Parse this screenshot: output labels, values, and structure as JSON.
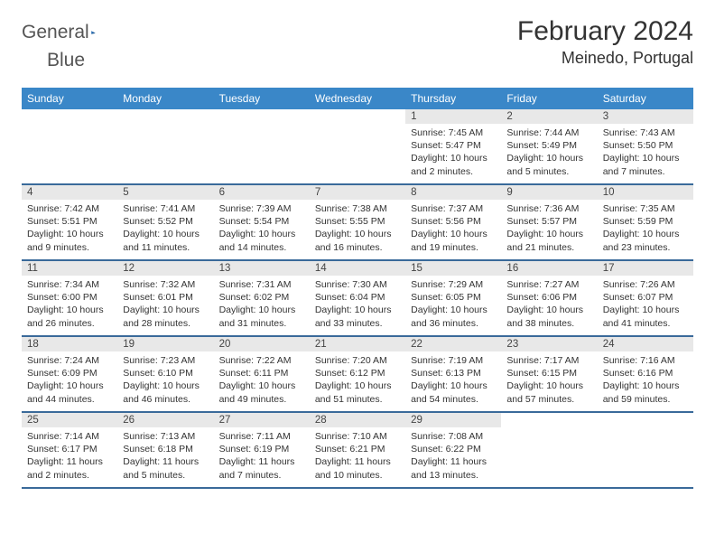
{
  "brand": {
    "word1": "General",
    "word2": "Blue",
    "icon_color": "#2a71b8"
  },
  "title": "February 2024",
  "location": "Meinedo, Portugal",
  "colors": {
    "header_bg": "#3a87c8",
    "week_border": "#3a6a9a",
    "daynum_bg": "#e8e8e8",
    "page_bg": "#ffffff",
    "text": "#333333"
  },
  "weekdays": [
    "Sunday",
    "Monday",
    "Tuesday",
    "Wednesday",
    "Thursday",
    "Friday",
    "Saturday"
  ],
  "weeks": [
    [
      {
        "n": "",
        "sunrise": "",
        "sunset": "",
        "daylight": ""
      },
      {
        "n": "",
        "sunrise": "",
        "sunset": "",
        "daylight": ""
      },
      {
        "n": "",
        "sunrise": "",
        "sunset": "",
        "daylight": ""
      },
      {
        "n": "",
        "sunrise": "",
        "sunset": "",
        "daylight": ""
      },
      {
        "n": "1",
        "sunrise": "Sunrise: 7:45 AM",
        "sunset": "Sunset: 5:47 PM",
        "daylight": "Daylight: 10 hours and 2 minutes."
      },
      {
        "n": "2",
        "sunrise": "Sunrise: 7:44 AM",
        "sunset": "Sunset: 5:49 PM",
        "daylight": "Daylight: 10 hours and 5 minutes."
      },
      {
        "n": "3",
        "sunrise": "Sunrise: 7:43 AM",
        "sunset": "Sunset: 5:50 PM",
        "daylight": "Daylight: 10 hours and 7 minutes."
      }
    ],
    [
      {
        "n": "4",
        "sunrise": "Sunrise: 7:42 AM",
        "sunset": "Sunset: 5:51 PM",
        "daylight": "Daylight: 10 hours and 9 minutes."
      },
      {
        "n": "5",
        "sunrise": "Sunrise: 7:41 AM",
        "sunset": "Sunset: 5:52 PM",
        "daylight": "Daylight: 10 hours and 11 minutes."
      },
      {
        "n": "6",
        "sunrise": "Sunrise: 7:39 AM",
        "sunset": "Sunset: 5:54 PM",
        "daylight": "Daylight: 10 hours and 14 minutes."
      },
      {
        "n": "7",
        "sunrise": "Sunrise: 7:38 AM",
        "sunset": "Sunset: 5:55 PM",
        "daylight": "Daylight: 10 hours and 16 minutes."
      },
      {
        "n": "8",
        "sunrise": "Sunrise: 7:37 AM",
        "sunset": "Sunset: 5:56 PM",
        "daylight": "Daylight: 10 hours and 19 minutes."
      },
      {
        "n": "9",
        "sunrise": "Sunrise: 7:36 AM",
        "sunset": "Sunset: 5:57 PM",
        "daylight": "Daylight: 10 hours and 21 minutes."
      },
      {
        "n": "10",
        "sunrise": "Sunrise: 7:35 AM",
        "sunset": "Sunset: 5:59 PM",
        "daylight": "Daylight: 10 hours and 23 minutes."
      }
    ],
    [
      {
        "n": "11",
        "sunrise": "Sunrise: 7:34 AM",
        "sunset": "Sunset: 6:00 PM",
        "daylight": "Daylight: 10 hours and 26 minutes."
      },
      {
        "n": "12",
        "sunrise": "Sunrise: 7:32 AM",
        "sunset": "Sunset: 6:01 PM",
        "daylight": "Daylight: 10 hours and 28 minutes."
      },
      {
        "n": "13",
        "sunrise": "Sunrise: 7:31 AM",
        "sunset": "Sunset: 6:02 PM",
        "daylight": "Daylight: 10 hours and 31 minutes."
      },
      {
        "n": "14",
        "sunrise": "Sunrise: 7:30 AM",
        "sunset": "Sunset: 6:04 PM",
        "daylight": "Daylight: 10 hours and 33 minutes."
      },
      {
        "n": "15",
        "sunrise": "Sunrise: 7:29 AM",
        "sunset": "Sunset: 6:05 PM",
        "daylight": "Daylight: 10 hours and 36 minutes."
      },
      {
        "n": "16",
        "sunrise": "Sunrise: 7:27 AM",
        "sunset": "Sunset: 6:06 PM",
        "daylight": "Daylight: 10 hours and 38 minutes."
      },
      {
        "n": "17",
        "sunrise": "Sunrise: 7:26 AM",
        "sunset": "Sunset: 6:07 PM",
        "daylight": "Daylight: 10 hours and 41 minutes."
      }
    ],
    [
      {
        "n": "18",
        "sunrise": "Sunrise: 7:24 AM",
        "sunset": "Sunset: 6:09 PM",
        "daylight": "Daylight: 10 hours and 44 minutes."
      },
      {
        "n": "19",
        "sunrise": "Sunrise: 7:23 AM",
        "sunset": "Sunset: 6:10 PM",
        "daylight": "Daylight: 10 hours and 46 minutes."
      },
      {
        "n": "20",
        "sunrise": "Sunrise: 7:22 AM",
        "sunset": "Sunset: 6:11 PM",
        "daylight": "Daylight: 10 hours and 49 minutes."
      },
      {
        "n": "21",
        "sunrise": "Sunrise: 7:20 AM",
        "sunset": "Sunset: 6:12 PM",
        "daylight": "Daylight: 10 hours and 51 minutes."
      },
      {
        "n": "22",
        "sunrise": "Sunrise: 7:19 AM",
        "sunset": "Sunset: 6:13 PM",
        "daylight": "Daylight: 10 hours and 54 minutes."
      },
      {
        "n": "23",
        "sunrise": "Sunrise: 7:17 AM",
        "sunset": "Sunset: 6:15 PM",
        "daylight": "Daylight: 10 hours and 57 minutes."
      },
      {
        "n": "24",
        "sunrise": "Sunrise: 7:16 AM",
        "sunset": "Sunset: 6:16 PM",
        "daylight": "Daylight: 10 hours and 59 minutes."
      }
    ],
    [
      {
        "n": "25",
        "sunrise": "Sunrise: 7:14 AM",
        "sunset": "Sunset: 6:17 PM",
        "daylight": "Daylight: 11 hours and 2 minutes."
      },
      {
        "n": "26",
        "sunrise": "Sunrise: 7:13 AM",
        "sunset": "Sunset: 6:18 PM",
        "daylight": "Daylight: 11 hours and 5 minutes."
      },
      {
        "n": "27",
        "sunrise": "Sunrise: 7:11 AM",
        "sunset": "Sunset: 6:19 PM",
        "daylight": "Daylight: 11 hours and 7 minutes."
      },
      {
        "n": "28",
        "sunrise": "Sunrise: 7:10 AM",
        "sunset": "Sunset: 6:21 PM",
        "daylight": "Daylight: 11 hours and 10 minutes."
      },
      {
        "n": "29",
        "sunrise": "Sunrise: 7:08 AM",
        "sunset": "Sunset: 6:22 PM",
        "daylight": "Daylight: 11 hours and 13 minutes."
      },
      {
        "n": "",
        "sunrise": "",
        "sunset": "",
        "daylight": ""
      },
      {
        "n": "",
        "sunrise": "",
        "sunset": "",
        "daylight": ""
      }
    ]
  ]
}
